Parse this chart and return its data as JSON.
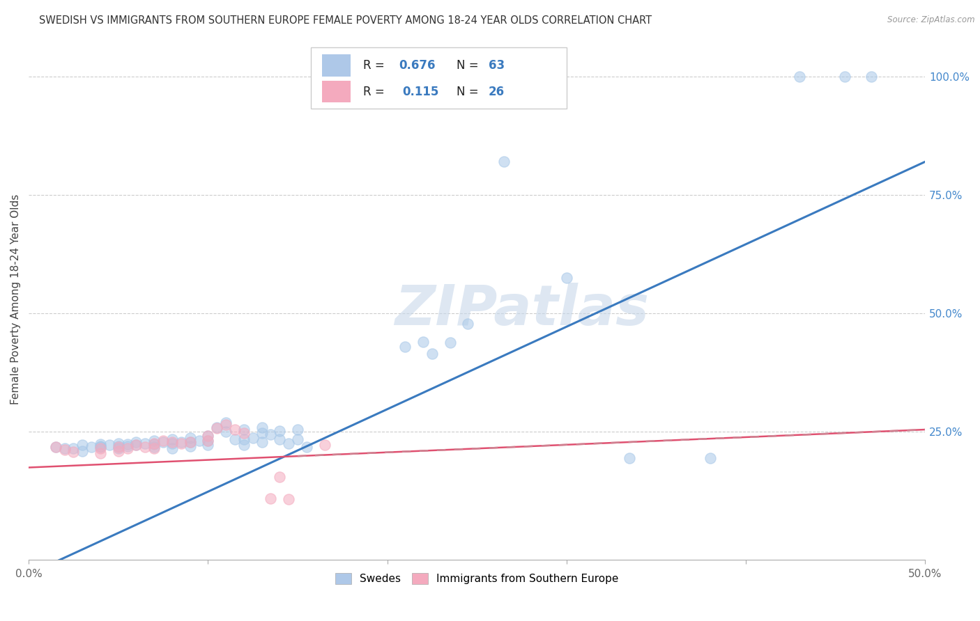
{
  "title": "SWEDISH VS IMMIGRANTS FROM SOUTHERN EUROPE FEMALE POVERTY AMONG 18-24 YEAR OLDS CORRELATION CHART",
  "source": "Source: ZipAtlas.com",
  "ylabel": "Female Poverty Among 18-24 Year Olds",
  "xlim": [
    0.0,
    0.5
  ],
  "ylim": [
    -0.02,
    1.08
  ],
  "xticks": [
    0.0,
    0.1,
    0.2,
    0.3,
    0.4,
    0.5
  ],
  "xtick_labels": [
    "0.0%",
    "",
    "",
    "",
    "",
    "50.0%"
  ],
  "ytick_labels_right": [
    "100.0%",
    "75.0%",
    "50.0%",
    "25.0%"
  ],
  "ytick_positions_right": [
    1.0,
    0.75,
    0.5,
    0.25
  ],
  "R_blue": 0.676,
  "N_blue": 63,
  "R_pink": 0.115,
  "N_pink": 26,
  "blue_dot_color": "#a8c8e8",
  "pink_dot_color": "#f4aabe",
  "trend_blue_color": "#3a7abf",
  "trend_pink_color": "#e05070",
  "trend_pink_dash_color": "#d08090",
  "watermark": "ZIPatlas",
  "legend_box_blue": "#aec8e8",
  "legend_box_pink": "#f4aabe",
  "blue_line_x": [
    0.0,
    0.5
  ],
  "blue_line_y": [
    -0.05,
    0.82
  ],
  "pink_line_x": [
    0.0,
    0.5
  ],
  "pink_line_y": [
    0.175,
    0.255
  ],
  "blue_scatter": [
    [
      0.015,
      0.218
    ],
    [
      0.02,
      0.215
    ],
    [
      0.025,
      0.215
    ],
    [
      0.03,
      0.222
    ],
    [
      0.03,
      0.21
    ],
    [
      0.035,
      0.218
    ],
    [
      0.04,
      0.224
    ],
    [
      0.04,
      0.22
    ],
    [
      0.04,
      0.218
    ],
    [
      0.045,
      0.222
    ],
    [
      0.05,
      0.226
    ],
    [
      0.05,
      0.22
    ],
    [
      0.05,
      0.215
    ],
    [
      0.055,
      0.224
    ],
    [
      0.055,
      0.22
    ],
    [
      0.06,
      0.228
    ],
    [
      0.06,
      0.222
    ],
    [
      0.065,
      0.225
    ],
    [
      0.07,
      0.232
    ],
    [
      0.07,
      0.224
    ],
    [
      0.07,
      0.218
    ],
    [
      0.075,
      0.228
    ],
    [
      0.08,
      0.235
    ],
    [
      0.08,
      0.225
    ],
    [
      0.08,
      0.215
    ],
    [
      0.085,
      0.228
    ],
    [
      0.09,
      0.238
    ],
    [
      0.09,
      0.228
    ],
    [
      0.09,
      0.22
    ],
    [
      0.095,
      0.232
    ],
    [
      0.1,
      0.242
    ],
    [
      0.1,
      0.232
    ],
    [
      0.1,
      0.222
    ],
    [
      0.105,
      0.26
    ],
    [
      0.11,
      0.27
    ],
    [
      0.11,
      0.25
    ],
    [
      0.115,
      0.235
    ],
    [
      0.12,
      0.255
    ],
    [
      0.12,
      0.235
    ],
    [
      0.12,
      0.222
    ],
    [
      0.125,
      0.238
    ],
    [
      0.13,
      0.26
    ],
    [
      0.13,
      0.248
    ],
    [
      0.13,
      0.228
    ],
    [
      0.135,
      0.245
    ],
    [
      0.14,
      0.252
    ],
    [
      0.14,
      0.235
    ],
    [
      0.145,
      0.225
    ],
    [
      0.15,
      0.255
    ],
    [
      0.15,
      0.235
    ],
    [
      0.155,
      0.218
    ],
    [
      0.21,
      0.43
    ],
    [
      0.22,
      0.44
    ],
    [
      0.225,
      0.415
    ],
    [
      0.235,
      0.438
    ],
    [
      0.245,
      0.478
    ],
    [
      0.265,
      0.82
    ],
    [
      0.3,
      0.575
    ],
    [
      0.335,
      0.195
    ],
    [
      0.38,
      0.195
    ],
    [
      0.43,
      1.0
    ],
    [
      0.455,
      1.0
    ],
    [
      0.47,
      1.0
    ]
  ],
  "pink_scatter": [
    [
      0.015,
      0.218
    ],
    [
      0.02,
      0.212
    ],
    [
      0.025,
      0.208
    ],
    [
      0.04,
      0.215
    ],
    [
      0.04,
      0.205
    ],
    [
      0.05,
      0.218
    ],
    [
      0.05,
      0.21
    ],
    [
      0.055,
      0.215
    ],
    [
      0.06,
      0.222
    ],
    [
      0.065,
      0.218
    ],
    [
      0.07,
      0.225
    ],
    [
      0.07,
      0.215
    ],
    [
      0.075,
      0.232
    ],
    [
      0.08,
      0.228
    ],
    [
      0.085,
      0.225
    ],
    [
      0.09,
      0.228
    ],
    [
      0.1,
      0.242
    ],
    [
      0.1,
      0.232
    ],
    [
      0.105,
      0.258
    ],
    [
      0.11,
      0.265
    ],
    [
      0.115,
      0.255
    ],
    [
      0.12,
      0.248
    ],
    [
      0.135,
      0.11
    ],
    [
      0.14,
      0.155
    ],
    [
      0.145,
      0.108
    ],
    [
      0.165,
      0.222
    ]
  ]
}
